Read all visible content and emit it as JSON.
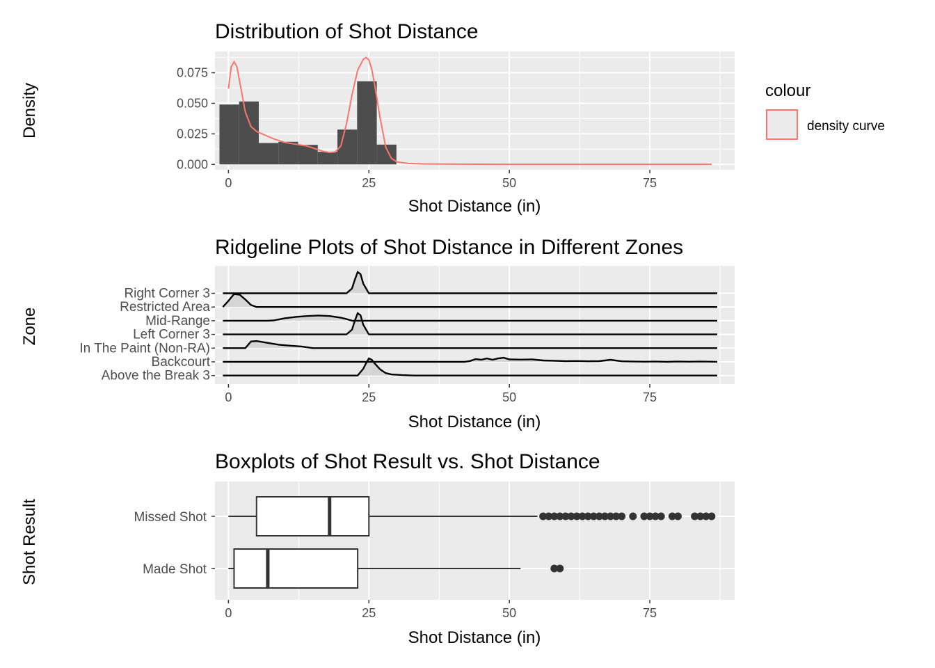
{
  "chart_data": [
    {
      "type": "histogram",
      "title": "Distribution of Shot Distance",
      "xlabel": "Shot Distance (in)",
      "ylabel": "Density",
      "xlim": [
        -2.4,
        90.1
      ],
      "ylim": [
        -0.0044,
        0.0924
      ],
      "x_ticks": [
        "0",
        "25",
        "50",
        "75"
      ],
      "y_ticks": [
        "0.000",
        "0.025",
        "0.050",
        "0.075"
      ],
      "bins": [
        {
          "x0": -1.6,
          "x1": 1.9,
          "density": 0.049
        },
        {
          "x0": 1.9,
          "x1": 5.4,
          "density": 0.0515
        },
        {
          "x0": 5.4,
          "x1": 8.9,
          "density": 0.0175
        },
        {
          "x0": 8.9,
          "x1": 12.4,
          "density": 0.0185
        },
        {
          "x0": 12.4,
          "x1": 15.9,
          "density": 0.016
        },
        {
          "x0": 15.9,
          "x1": 19.4,
          "density": 0.0103
        },
        {
          "x0": 19.4,
          "x1": 22.9,
          "density": 0.0285
        },
        {
          "x0": 22.9,
          "x1": 26.4,
          "density": 0.068
        },
        {
          "x0": 26.4,
          "x1": 29.9,
          "density": 0.0162
        }
      ],
      "density_curve": {
        "name": "density curve",
        "color": "#F8766D",
        "x": [
          0,
          0.5,
          1,
          1.5,
          2,
          3,
          4,
          5,
          6,
          8,
          10,
          12,
          14,
          16,
          17,
          18,
          19,
          20,
          21,
          22,
          23,
          24,
          24.5,
          25,
          25.5,
          26,
          27,
          28,
          29,
          30,
          32,
          35,
          40,
          50,
          60,
          70,
          86
        ],
        "y": [
          0.062,
          0.08,
          0.084,
          0.08,
          0.068,
          0.043,
          0.031,
          0.027,
          0.025,
          0.021,
          0.018,
          0.0165,
          0.015,
          0.012,
          0.0105,
          0.0098,
          0.0102,
          0.015,
          0.033,
          0.057,
          0.077,
          0.086,
          0.0875,
          0.0855,
          0.078,
          0.066,
          0.038,
          0.014,
          0.005,
          0.002,
          0.0008,
          0.0004,
          0.0002,
          0.0001,
          0.0001,
          0.0001,
          0.0001
        ]
      },
      "legend": {
        "title": "colour",
        "entries": [
          "density curve"
        ],
        "placement": "right"
      }
    },
    {
      "type": "ridgeline",
      "title": "Ridgeline Plots of Shot Distance in Different Zones",
      "xlabel": "Shot Distance (in)",
      "ylabel": "Zone",
      "xlim": [
        -2.4,
        90.1
      ],
      "x_ticks": [
        "0",
        "25",
        "50",
        "75"
      ],
      "categories": [
        "Right Corner 3",
        "Restricted Area",
        "Mid-Range",
        "Left Corner 3",
        "In The Paint (Non-RA)",
        "Backcourt",
        "Above the Break 3"
      ],
      "range": [
        -1,
        87
      ],
      "series": [
        {
          "zone": "Right Corner 3",
          "x": [
            -1,
            21,
            22,
            22.5,
            23,
            23.5,
            24,
            25,
            87
          ],
          "height": [
            0,
            0,
            0.35,
            1.0,
            1.55,
            1.4,
            0.7,
            0,
            0
          ]
        },
        {
          "zone": "Restricted Area",
          "x": [
            -1,
            0,
            1,
            2,
            3,
            4,
            5,
            87
          ],
          "height": [
            0,
            0.45,
            0.95,
            0.9,
            0.55,
            0.15,
            0,
            0
          ]
        },
        {
          "zone": "Mid-Range",
          "x": [
            -1,
            7,
            8,
            10,
            12,
            14,
            16,
            18,
            20,
            21,
            22,
            87
          ],
          "height": [
            0,
            0,
            0.02,
            0.18,
            0.28,
            0.34,
            0.38,
            0.34,
            0.22,
            0.12,
            0,
            0
          ]
        },
        {
          "zone": "Left Corner 3",
          "x": [
            -1,
            21,
            22,
            22.5,
            23,
            23.5,
            24,
            25,
            87
          ],
          "height": [
            0,
            0,
            0.35,
            1.0,
            1.55,
            1.4,
            0.7,
            0,
            0
          ]
        },
        {
          "zone": "In The Paint (Non-RA)",
          "x": [
            -1,
            3,
            4,
            5,
            7,
            9,
            11,
            13,
            14,
            15,
            87
          ],
          "height": [
            0,
            0,
            0.48,
            0.52,
            0.38,
            0.25,
            0.18,
            0.12,
            0.06,
            0,
            0
          ]
        },
        {
          "zone": "Backcourt",
          "x": [
            -1,
            42,
            43,
            44,
            45,
            46,
            47,
            48,
            49,
            50,
            52,
            54,
            56,
            58,
            60,
            62,
            64,
            66,
            68,
            70,
            72,
            74,
            76,
            78,
            80,
            82,
            84,
            86,
            87
          ],
          "height": [
            0,
            0,
            0.06,
            0.2,
            0.15,
            0.25,
            0.15,
            0.25,
            0.3,
            0.18,
            0.16,
            0.18,
            0.1,
            0.08,
            0.05,
            0.06,
            0.04,
            0.05,
            0.15,
            0.04,
            0.02,
            0.01,
            0.02,
            0.0,
            0.02,
            0.01,
            0.02,
            0.01,
            0
          ]
        },
        {
          "zone": "Above the Break 3",
          "x": [
            -1,
            23,
            24,
            24.5,
            25,
            25.5,
            26,
            27,
            28,
            29,
            31,
            33,
            87
          ],
          "height": [
            0,
            0,
            0.5,
            0.9,
            1.25,
            1.15,
            0.9,
            0.45,
            0.18,
            0.08,
            0.03,
            0,
            0
          ]
        }
      ]
    },
    {
      "type": "boxplot",
      "title": "Boxplots of Shot Result vs. Shot Distance",
      "xlabel": "Shot Distance (in)",
      "ylabel": "Shot Result",
      "xlim": [
        -2.4,
        90.1
      ],
      "x_ticks": [
        "0",
        "25",
        "50",
        "75"
      ],
      "categories": [
        "Missed Shot",
        "Made Shot"
      ],
      "boxes": [
        {
          "name": "Missed Shot",
          "whisker_low": 0,
          "q1": 5,
          "median": 18,
          "q3": 25,
          "whisker_high": 55,
          "outliers": [
            56,
            57,
            58,
            59,
            60,
            61,
            62,
            63,
            64,
            65,
            66,
            67,
            68,
            69,
            70,
            72,
            74,
            75,
            76,
            77,
            79,
            80,
            83,
            84,
            85,
            86
          ]
        },
        {
          "name": "Made Shot",
          "whisker_low": 0,
          "q1": 1,
          "median": 7,
          "q3": 23,
          "whisker_high": 52,
          "outliers": [
            58,
            59
          ]
        }
      ]
    }
  ]
}
